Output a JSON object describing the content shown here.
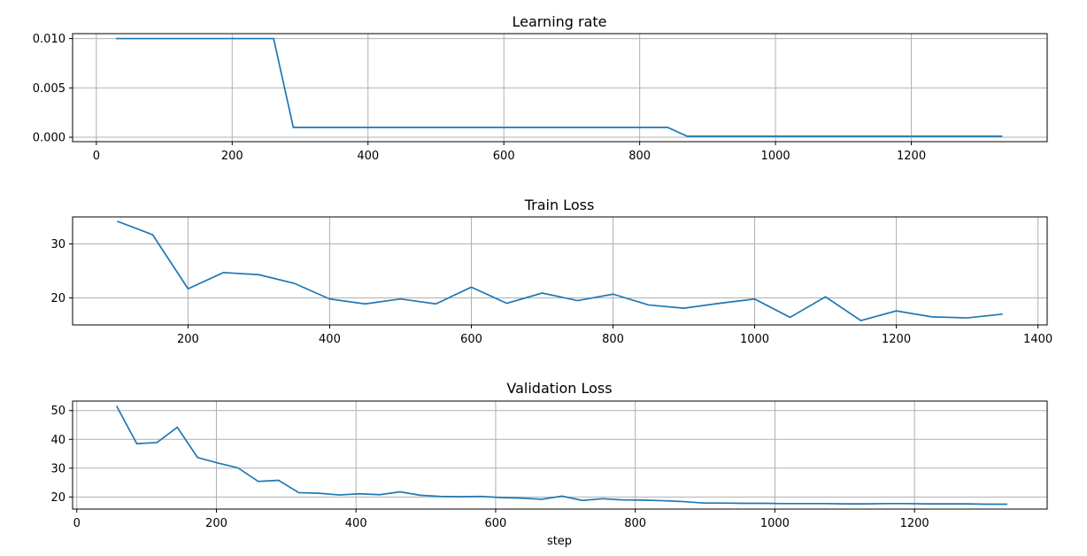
{
  "chart_data": [
    {
      "type": "line",
      "title": "Learning rate",
      "xlabel": "",
      "ylabel": "",
      "xlim": [
        -35,
        1400
      ],
      "ylim": [
        -0.00045,
        0.0105
      ],
      "xticks": [
        0,
        200,
        400,
        600,
        800,
        1000,
        1200
      ],
      "yticks": [
        0.0,
        0.005,
        0.01
      ],
      "xtick_labels": [
        "0",
        "200",
        "400",
        "600",
        "800",
        "1000",
        "1200"
      ],
      "ytick_labels": [
        "0.000",
        "0.005",
        "0.010"
      ],
      "grid": true,
      "series": [
        {
          "color": "#1f77b4",
          "x": [
            29,
            58,
            87,
            116,
            145,
            174,
            203,
            232,
            261,
            290,
            319,
            348,
            377,
            406,
            435,
            464,
            493,
            522,
            551,
            580,
            609,
            638,
            667,
            696,
            725,
            754,
            783,
            812,
            841,
            870,
            899,
            928,
            957,
            986,
            1015,
            1044,
            1073,
            1102,
            1131,
            1160,
            1189,
            1218,
            1247,
            1276,
            1305,
            1334
          ],
          "y": [
            0.01,
            0.01,
            0.01,
            0.01,
            0.01,
            0.01,
            0.01,
            0.01,
            0.01,
            0.001,
            0.001,
            0.001,
            0.001,
            0.001,
            0.001,
            0.001,
            0.001,
            0.001,
            0.001,
            0.001,
            0.001,
            0.001,
            0.001,
            0.001,
            0.001,
            0.001,
            0.001,
            0.001,
            0.001,
            0.0001,
            0.0001,
            0.0001,
            0.0001,
            0.0001,
            0.0001,
            0.0001,
            0.0001,
            0.0001,
            0.0001,
            0.0001,
            0.0001,
            0.0001,
            0.0001,
            0.0001,
            0.0001,
            0.0001
          ]
        }
      ]
    },
    {
      "type": "line",
      "title": "Train Loss",
      "xlabel": "",
      "ylabel": "",
      "xlim": [
        37,
        1413
      ],
      "ylim": [
        15.0,
        35.0
      ],
      "xticks": [
        200,
        400,
        600,
        800,
        1000,
        1200,
        1400
      ],
      "yticks": [
        20,
        30
      ],
      "xtick_labels": [
        "200",
        "400",
        "600",
        "800",
        "1000",
        "1200",
        "1400"
      ],
      "ytick_labels": [
        "20",
        "30"
      ],
      "grid": true,
      "series": [
        {
          "color": "#1f77b4",
          "x": [
            100,
            150,
            200,
            250,
            300,
            350,
            400,
            450,
            500,
            550,
            600,
            650,
            700,
            750,
            800,
            850,
            900,
            950,
            1000,
            1050,
            1100,
            1150,
            1200,
            1250,
            1300,
            1350
          ],
          "y": [
            34.2,
            31.7,
            21.7,
            24.7,
            24.3,
            22.7,
            19.8,
            18.9,
            19.8,
            18.9,
            22.0,
            19.0,
            20.9,
            19.5,
            20.7,
            18.7,
            18.1,
            19.0,
            19.8,
            16.4,
            20.2,
            15.8,
            17.6,
            16.5,
            16.3,
            17.0
          ]
        }
      ]
    },
    {
      "type": "line",
      "title": "Validation Loss",
      "xlabel": "step",
      "ylabel": "",
      "xlim": [
        -6,
        1390
      ],
      "ylim": [
        15.8,
        53.3
      ],
      "xticks": [
        0,
        200,
        400,
        600,
        800,
        1000,
        1200
      ],
      "yticks": [
        20,
        30,
        40,
        50
      ],
      "xtick_labels": [
        "0",
        "200",
        "400",
        "600",
        "800",
        "1000",
        "1200"
      ],
      "ytick_labels": [
        "20",
        "30",
        "40",
        "50"
      ],
      "grid": true,
      "series": [
        {
          "color": "#1f77b4",
          "x": [
            57,
            86,
            115,
            144,
            173,
            202,
            231,
            260,
            289,
            318,
            347,
            376,
            405,
            434,
            463,
            492,
            521,
            550,
            579,
            608,
            637,
            666,
            695,
            724,
            753,
            782,
            811,
            840,
            869,
            898,
            927,
            956,
            985,
            1014,
            1043,
            1072,
            1101,
            1130,
            1159,
            1188,
            1217,
            1246,
            1275,
            1304,
            1333
          ],
          "y": [
            51.6,
            38.5,
            38.9,
            44.2,
            33.7,
            31.8,
            30.1,
            25.4,
            25.8,
            21.5,
            21.3,
            20.7,
            21.1,
            20.8,
            21.8,
            20.6,
            20.2,
            20.1,
            20.2,
            19.8,
            19.6,
            19.2,
            20.3,
            18.8,
            19.4,
            19.0,
            18.9,
            18.7,
            18.4,
            17.9,
            17.9,
            17.8,
            17.8,
            17.7,
            17.7,
            17.7,
            17.6,
            17.6,
            17.7,
            17.7,
            17.6,
            17.6,
            17.6,
            17.5,
            17.5
          ]
        }
      ]
    }
  ]
}
